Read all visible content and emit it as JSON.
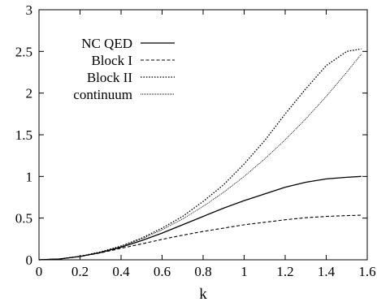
{
  "chart_data": {
    "type": "line",
    "title": "",
    "xlabel": "k",
    "ylabel": "",
    "xlim": [
      0,
      1.6
    ],
    "ylim": [
      0,
      3
    ],
    "xticks": [
      0,
      0.2,
      0.4,
      0.6,
      0.8,
      1,
      1.2,
      1.4,
      1.6
    ],
    "xtick_labels": [
      "0",
      "0.2",
      "0.4",
      "0.6",
      "0.8",
      "1",
      "1.2",
      "1.4",
      "1.6"
    ],
    "yticks": [
      0,
      0.5,
      1,
      1.5,
      2,
      2.5,
      3
    ],
    "ytick_labels": [
      "0",
      "0.5",
      "1",
      "1.5",
      "2",
      "2.5",
      "3"
    ],
    "grid": false,
    "legend_position": "top-left",
    "series": [
      {
        "name": "NC QED",
        "style": "solid",
        "x": [
          0,
          0.1,
          0.2,
          0.3,
          0.4,
          0.5,
          0.6,
          0.7,
          0.8,
          0.9,
          1.0,
          1.1,
          1.2,
          1.3,
          1.4,
          1.5,
          1.5708
        ],
        "y": [
          0,
          0.01,
          0.04,
          0.087,
          0.151,
          0.23,
          0.32,
          0.42,
          0.52,
          0.62,
          0.71,
          0.79,
          0.87,
          0.93,
          0.97,
          0.99,
          1.0
        ]
      },
      {
        "name": "Block I",
        "style": "dashed",
        "x": [
          0,
          0.1,
          0.2,
          0.3,
          0.4,
          0.5,
          0.6,
          0.7,
          0.8,
          0.9,
          1.0,
          1.1,
          1.2,
          1.3,
          1.4,
          1.5,
          1.5708
        ],
        "y": [
          0,
          0.01,
          0.039,
          0.083,
          0.138,
          0.19,
          0.245,
          0.295,
          0.34,
          0.38,
          0.42,
          0.45,
          0.48,
          0.505,
          0.52,
          0.53,
          0.535
        ]
      },
      {
        "name": "Block II",
        "style": "dotted",
        "x": [
          0,
          0.1,
          0.2,
          0.3,
          0.4,
          0.5,
          0.6,
          0.7,
          0.8,
          0.9,
          1.0,
          1.1,
          1.2,
          1.3,
          1.4,
          1.5,
          1.5708
        ],
        "y": [
          0,
          0.01,
          0.042,
          0.095,
          0.165,
          0.26,
          0.38,
          0.52,
          0.7,
          0.9,
          1.15,
          1.43,
          1.75,
          2.05,
          2.33,
          2.5,
          2.53
        ]
      },
      {
        "name": "continuum",
        "style": "fine-dotted",
        "x": [
          0,
          0.1,
          0.2,
          0.3,
          0.4,
          0.5,
          0.6,
          0.7,
          0.8,
          0.9,
          1.0,
          1.1,
          1.2,
          1.3,
          1.4,
          1.5,
          1.5708
        ],
        "y": [
          0,
          0.01,
          0.04,
          0.09,
          0.16,
          0.25,
          0.36,
          0.49,
          0.64,
          0.81,
          1.0,
          1.21,
          1.44,
          1.69,
          1.96,
          2.25,
          2.467
        ]
      }
    ]
  }
}
